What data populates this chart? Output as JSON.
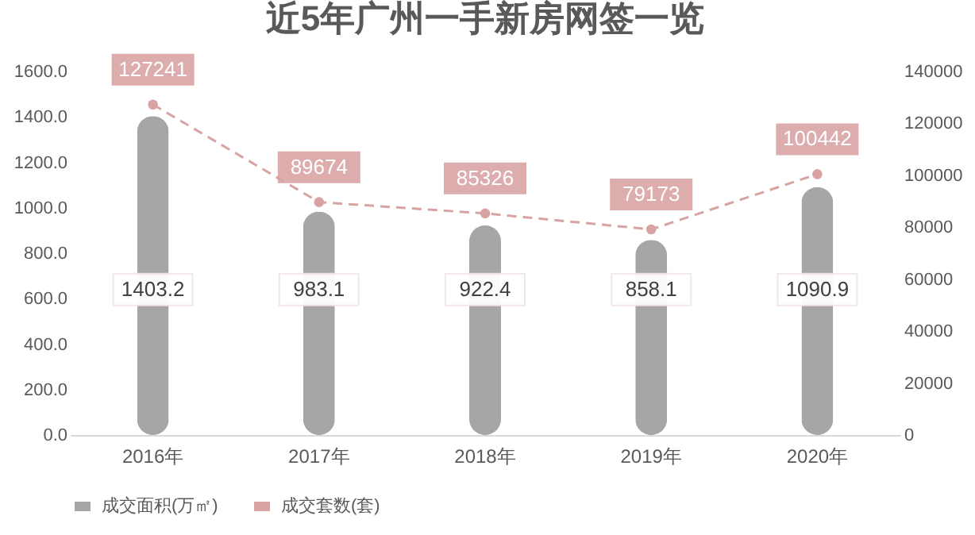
{
  "chart_data": {
    "type": "bar",
    "title": "近5年广州一手新房网签一览",
    "categories": [
      "2016年",
      "2017年",
      "2018年",
      "2019年",
      "2020年"
    ],
    "series": [
      {
        "name": "成交面积(万㎡)",
        "color": "#a6a6a6",
        "values": [
          1403.2,
          983.1,
          922.4,
          858.1,
          1090.9
        ]
      },
      {
        "name": "成交套数(套)",
        "type": "line",
        "axis": "y2",
        "color": "#d9a3a3",
        "values": [
          127241,
          89674,
          85326,
          79173,
          100442
        ],
        "marker": "circle",
        "line_style": "dashed"
      }
    ],
    "ylim": [
      0,
      1600
    ],
    "yticks": [
      {
        "value": 0,
        "label": "0.0"
      },
      {
        "value": 200,
        "label": "200.0"
      },
      {
        "value": 400,
        "label": "400.0"
      },
      {
        "value": 600,
        "label": "600.0"
      },
      {
        "value": 800,
        "label": "800.0"
      },
      {
        "value": 1000,
        "label": "1000.0"
      },
      {
        "value": 1200,
        "label": "1200.0"
      },
      {
        "value": 1400,
        "label": "1400.0"
      },
      {
        "value": 1600,
        "label": "1600.0"
      }
    ],
    "y2lim": [
      0,
      140000
    ],
    "y2ticks": [
      0,
      20000,
      40000,
      60000,
      80000,
      100000,
      120000,
      140000
    ],
    "data_labels": true,
    "legend": "bottom"
  }
}
